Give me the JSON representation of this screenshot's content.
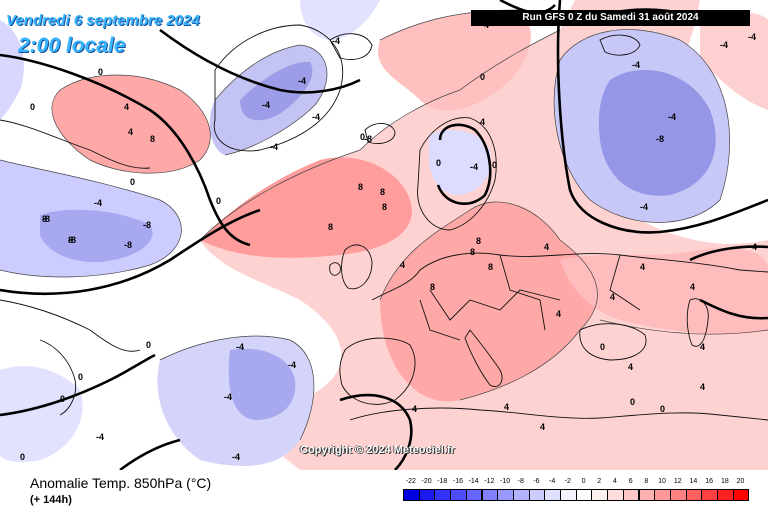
{
  "header": {
    "valid_date": "Vendredi 6 septembre 2024",
    "local_time": "2:00 locale",
    "run_info": "Run GFS 0 Z du Samedi 31 août 2024",
    "copyright": "Copyright © 2024 Meteociel.fr"
  },
  "footer": {
    "parameter": "Anomalie Temp. 850hPa (°C)",
    "lead_time": "(+ 144h)"
  },
  "legend": {
    "ticks": [
      "-22",
      "-20",
      "-18",
      "-16",
      "-14",
      "-12",
      "-10",
      "-8",
      "-6",
      "-4",
      "-2",
      "0",
      "2",
      "4",
      "6",
      "8",
      "10",
      "12",
      "14",
      "16",
      "18",
      "20"
    ],
    "colors": [
      "#0000e0",
      "#1a1af0",
      "#3333ff",
      "#4d4dff",
      "#6666ff",
      "#7f7fff",
      "#9999ff",
      "#b2b2ff",
      "#ccccff",
      "#e0e0ff",
      "#f4f4ff",
      "#ffffff",
      "#fff0f0",
      "#ffdddd",
      "#ffc8c8",
      "#ffb0b0",
      "#ff9898",
      "#ff8080",
      "#ff6060",
      "#ff4040",
      "#ff2020",
      "#ff0000"
    ]
  },
  "map": {
    "contour_labels": [
      "-8",
      "-8",
      "-8",
      "-8",
      "-8",
      "-8",
      "-4",
      "-4",
      "-4",
      "-4",
      "-4",
      "-4",
      "-4",
      "-4",
      "-4",
      "-4",
      "-4",
      "-4",
      "-4",
      "-4",
      "-4",
      "-4",
      "-4",
      "0",
      "0",
      "0",
      "0",
      "0",
      "0",
      "0",
      "0",
      "0",
      "0",
      "0",
      "0",
      "0",
      "0",
      "0",
      "0",
      "4",
      "4",
      "4",
      "4",
      "4",
      "4",
      "4",
      "4",
      "4",
      "4",
      "4",
      "4",
      "4",
      "4",
      "4",
      "4",
      "4",
      "8",
      "8",
      "8",
      "8",
      "8",
      "8",
      "8",
      "8",
      "8",
      "8",
      "8"
    ]
  }
}
